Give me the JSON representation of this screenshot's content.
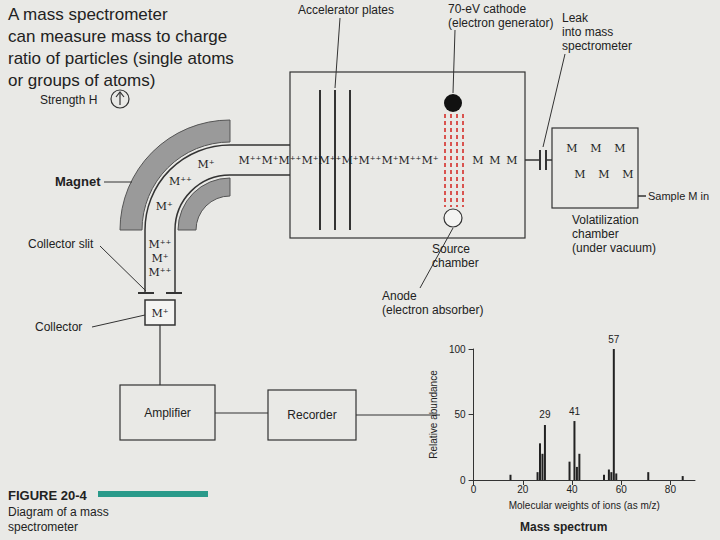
{
  "caption": [
    "A mass spectrometer",
    "can measure mass to charge",
    "ratio of particles (single atoms",
    "or groups of atoms)"
  ],
  "labels": {
    "strength": "Strength H",
    "magnet": "Magnet",
    "accelerator": "Accelerator plates",
    "cathode": [
      "70-eV cathode",
      "(electron generator)"
    ],
    "leak": [
      "Leak",
      "into mass",
      "spectrometer"
    ],
    "volatilization": [
      "Volatilization",
      "chamber",
      "(under vacuum)"
    ],
    "sample": "Sample M in",
    "source": [
      "Source",
      "chamber"
    ],
    "anode": [
      "Anode",
      "(electron absorber)"
    ],
    "collector_slit": "Collector slit",
    "collector": "Collector",
    "amplifier": "Amplifier",
    "recorder": "Recorder"
  },
  "particles": {
    "beam_horizontal": [
      "M⁺⁺",
      "M⁺",
      "M⁺⁺",
      "M⁺",
      "M⁺⁺",
      "M⁺",
      "M⁺⁺",
      "M⁺",
      "M⁺⁺",
      "M⁺"
    ],
    "beam_curve": [
      "M⁺",
      "M⁺⁺",
      "M⁺"
    ],
    "beam_vertical": [
      "M⁺⁺",
      "M⁺",
      "M⁺⁺"
    ],
    "collected": "M⁺",
    "neutral_row": [
      "M",
      "M",
      "M"
    ],
    "chamber": [
      "M",
      "M",
      "M",
      "M",
      "M",
      "M"
    ]
  },
  "figure": {
    "number": "FIGURE 20-4",
    "caption": [
      "Diagram of a mass",
      "spectrometer"
    ]
  },
  "chart_data": {
    "type": "bar",
    "title": "Mass spectrum",
    "x_label": "Molecular weights of ions (as m/z)",
    "y_label": "Relative abundance",
    "x": [
      15,
      26,
      27,
      28,
      29,
      39,
      41,
      42,
      43,
      53,
      55,
      56,
      57,
      58,
      71,
      85
    ],
    "values": [
      4,
      6,
      28,
      20,
      42,
      14,
      45,
      10,
      20,
      4,
      8,
      6,
      100,
      5,
      6,
      3
    ],
    "annotations": [
      {
        "x": 57,
        "text": "57"
      },
      {
        "x": 29,
        "text": "29"
      },
      {
        "x": 41,
        "text": "41"
      }
    ],
    "xlim": [
      0,
      90
    ],
    "xticks": [
      0,
      20,
      40,
      60,
      80
    ],
    "ylim": [
      0,
      100
    ],
    "yticks": [
      0,
      50,
      100
    ],
    "color": "#222222",
    "grid": false
  }
}
